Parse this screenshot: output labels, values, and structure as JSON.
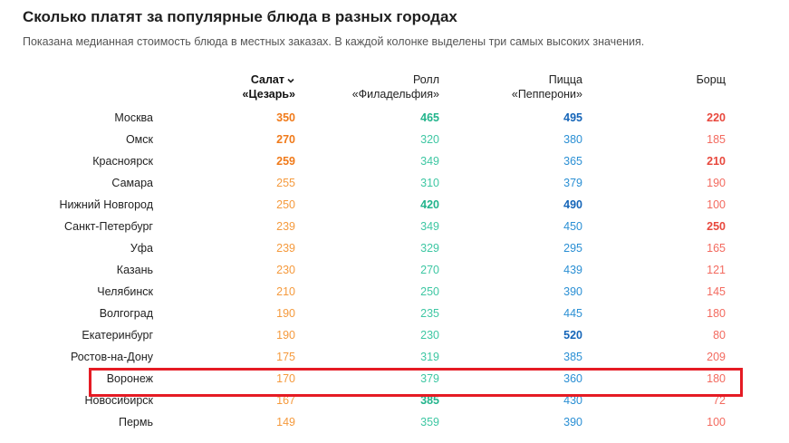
{
  "header": {
    "title": "Сколько платят за популярные блюда в разных городах",
    "subtitle": "Показана медианная стоимость блюда в местных заказах. В каждой колонке выделены три самых высоких значения."
  },
  "columns": [
    {
      "line1": "Салат",
      "line2": "«Цезарь»",
      "sorted": true,
      "sort_icon": "chevron-down-icon"
    },
    {
      "line1": "Ролл",
      "line2": "«Филадельфия»",
      "sorted": false
    },
    {
      "line1": "Пицца",
      "line2": "«Пепперони»",
      "sorted": false
    },
    {
      "line1": "Борщ",
      "line2": "",
      "sorted": false
    }
  ],
  "colors": {
    "caesar": "#f59a3d",
    "roll": "#3ec7a3",
    "pizza": "#2a8fd4",
    "borscht": "#f36a5f",
    "highlight_frame": "#e51b24"
  },
  "rows": [
    {
      "city": "Москва",
      "values": [
        "350",
        "465",
        "495",
        "220"
      ],
      "top": [
        true,
        true,
        true,
        true
      ]
    },
    {
      "city": "Омск",
      "values": [
        "270",
        "320",
        "380",
        "185"
      ],
      "top": [
        true,
        false,
        false,
        false
      ]
    },
    {
      "city": "Красноярск",
      "values": [
        "259",
        "349",
        "365",
        "210"
      ],
      "top": [
        true,
        false,
        false,
        true
      ]
    },
    {
      "city": "Самара",
      "values": [
        "255",
        "310",
        "379",
        "190"
      ],
      "top": [
        false,
        false,
        false,
        false
      ]
    },
    {
      "city": "Нижний Новгород",
      "values": [
        "250",
        "420",
        "490",
        "100"
      ],
      "top": [
        false,
        true,
        true,
        false
      ]
    },
    {
      "city": "Санкт-Петербург",
      "values": [
        "239",
        "349",
        "450",
        "250"
      ],
      "top": [
        false,
        false,
        false,
        true
      ]
    },
    {
      "city": "Уфа",
      "values": [
        "239",
        "329",
        "295",
        "165"
      ],
      "top": [
        false,
        false,
        false,
        false
      ]
    },
    {
      "city": "Казань",
      "values": [
        "230",
        "270",
        "439",
        "121"
      ],
      "top": [
        false,
        false,
        false,
        false
      ]
    },
    {
      "city": "Челябинск",
      "values": [
        "210",
        "250",
        "390",
        "145"
      ],
      "top": [
        false,
        false,
        false,
        false
      ]
    },
    {
      "city": "Волгоград",
      "values": [
        "190",
        "235",
        "445",
        "180"
      ],
      "top": [
        false,
        false,
        false,
        false
      ]
    },
    {
      "city": "Екатеринбург",
      "values": [
        "190",
        "230",
        "520",
        "80"
      ],
      "top": [
        false,
        false,
        true,
        false
      ]
    },
    {
      "city": "Ростов-на-Дону",
      "values": [
        "175",
        "319",
        "385",
        "209"
      ],
      "top": [
        false,
        false,
        false,
        false
      ]
    },
    {
      "city": "Воронеж",
      "values": [
        "170",
        "379",
        "360",
        "180"
      ],
      "top": [
        false,
        false,
        false,
        false
      ],
      "highlighted": true
    },
    {
      "city": "Новосибирск",
      "values": [
        "167",
        "385",
        "430",
        "72"
      ],
      "top": [
        false,
        true,
        false,
        false
      ]
    },
    {
      "city": "Пермь",
      "values": [
        "149",
        "359",
        "390",
        "100"
      ],
      "top": [
        false,
        false,
        false,
        false
      ]
    }
  ]
}
